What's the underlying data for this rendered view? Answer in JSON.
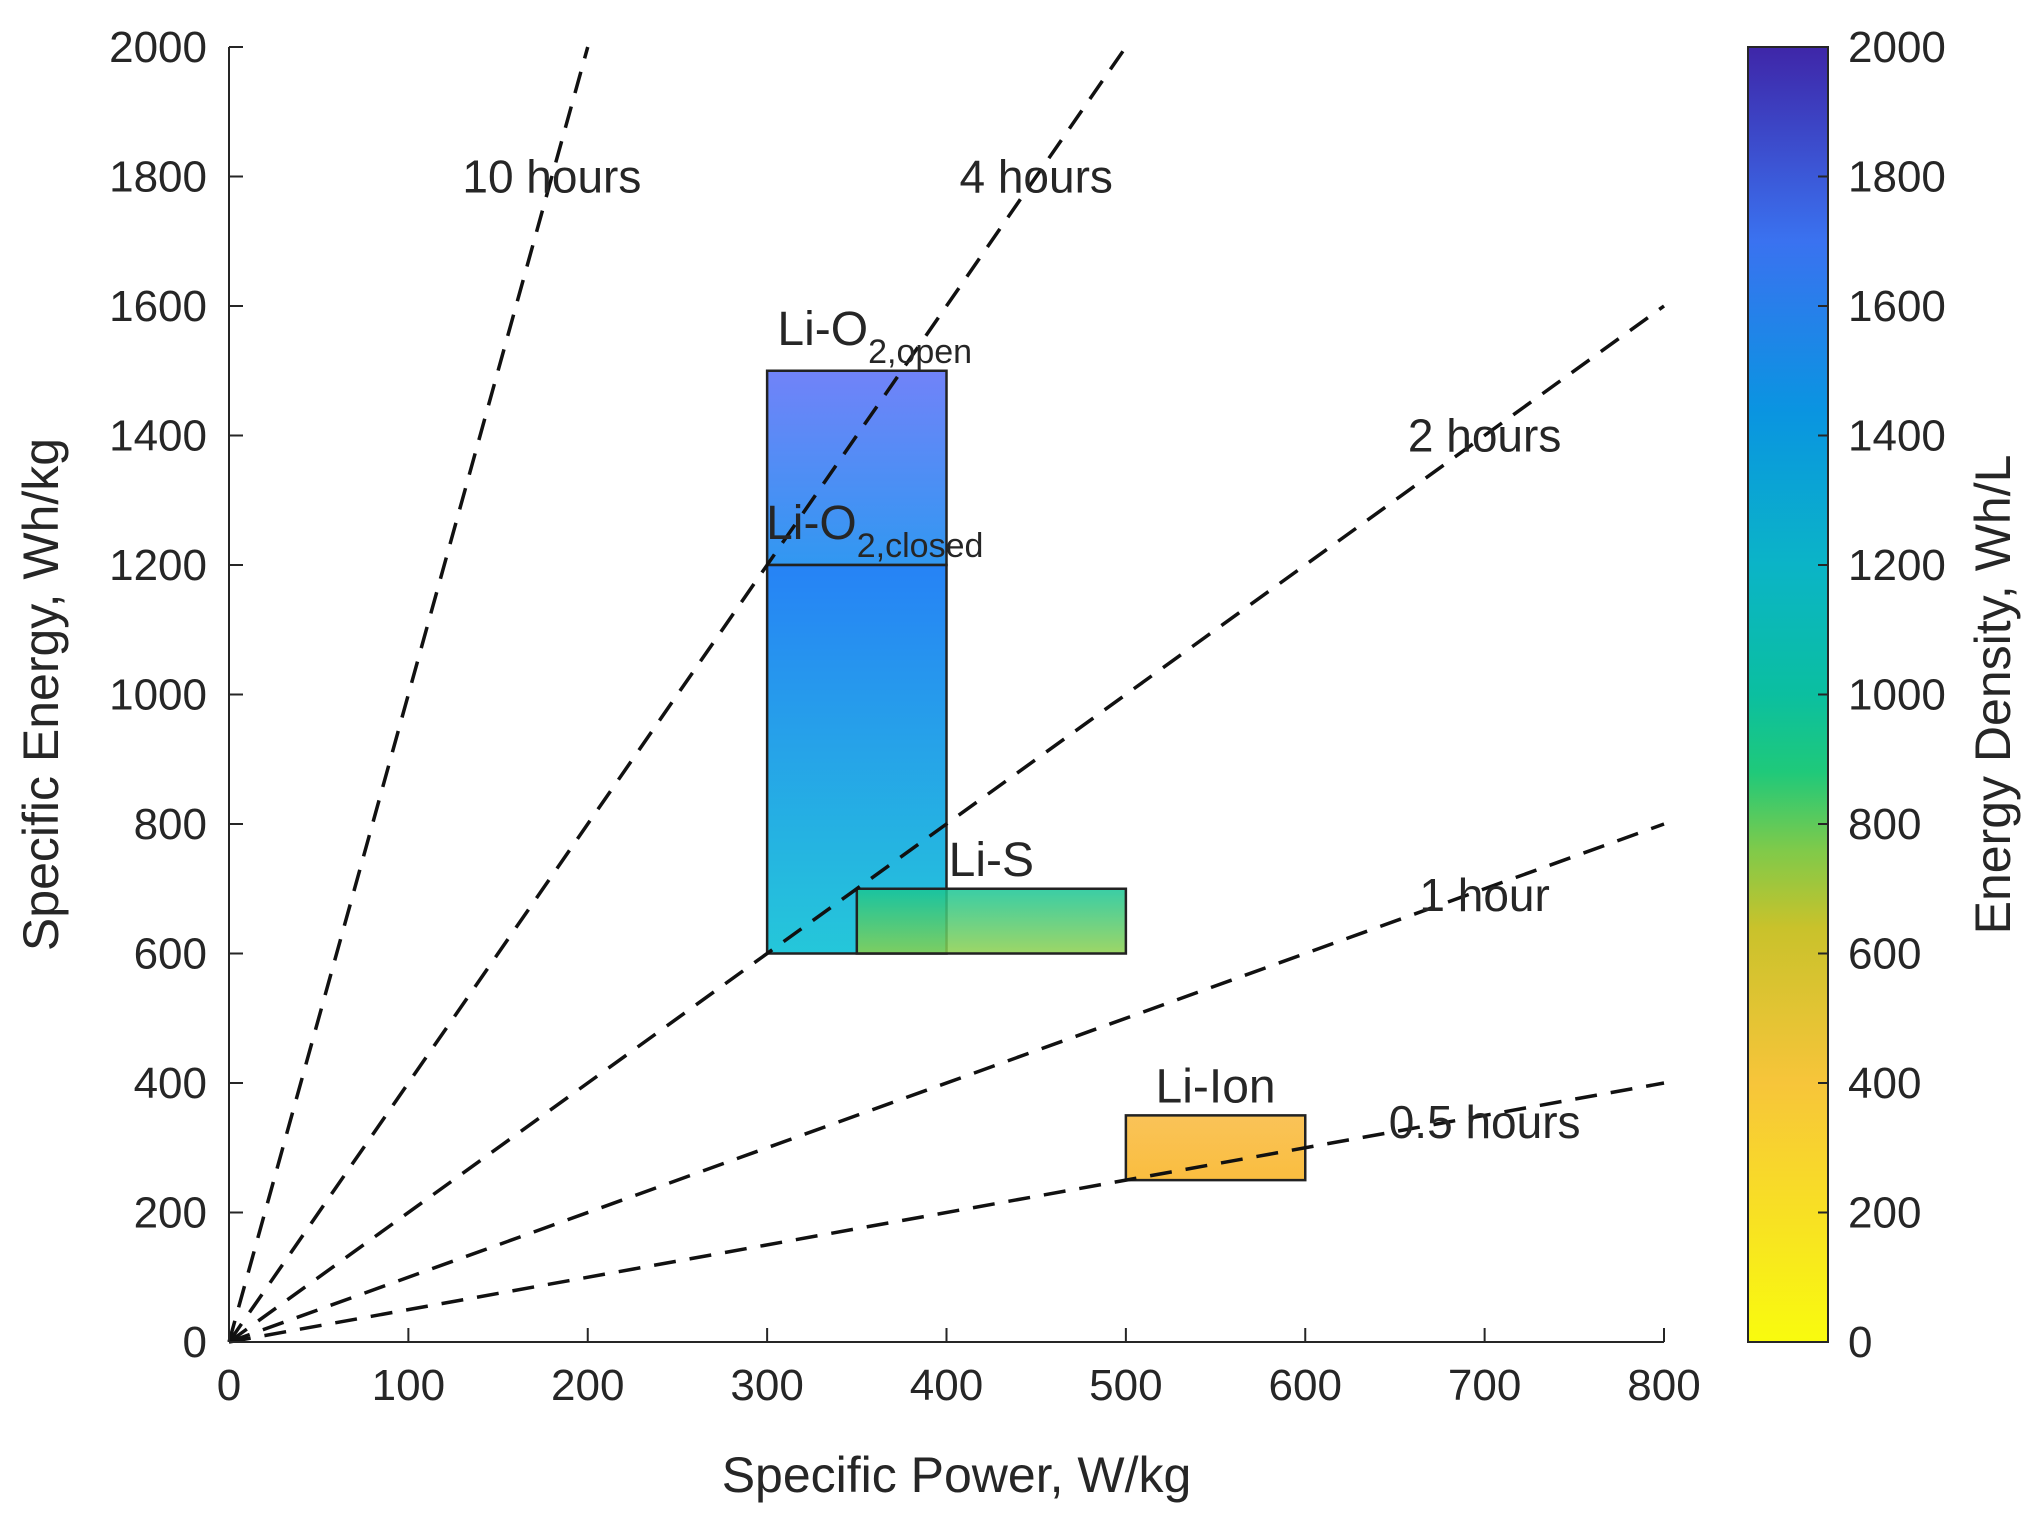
{
  "chart_data": {
    "type": "range-boxes",
    "xlabel": "Specific Power, W/kg",
    "ylabel": "Specific Energy, Wh/kg",
    "xlim": [
      0,
      800
    ],
    "ylim": [
      0,
      2000
    ],
    "xticks": [
      "0",
      "100",
      "200",
      "300",
      "400",
      "500",
      "600",
      "700",
      "800"
    ],
    "yticks": [
      "0",
      "200",
      "400",
      "600",
      "800",
      "1000",
      "1200",
      "1400",
      "1600",
      "1800",
      "2000"
    ],
    "colorbar": {
      "label": "Energy Density, Wh/L",
      "range": [
        0,
        2000
      ],
      "ticks": [
        "0",
        "200",
        "400",
        "600",
        "800",
        "1000",
        "1200",
        "1400",
        "1600",
        "1800",
        "2000"
      ]
    },
    "time_lines": [
      {
        "label": "10 hours",
        "hours": 10,
        "label_at": [
          180,
          1800
        ]
      },
      {
        "label": "4 hours",
        "hours": 4,
        "label_at": [
          450,
          1800
        ]
      },
      {
        "label": "2 hours",
        "hours": 2,
        "label_at": [
          700,
          1400
        ]
      },
      {
        "label": "1 hour",
        "hours": 1,
        "label_at": [
          700,
          690
        ]
      },
      {
        "label": "0.5 hours",
        "hours": 0.5,
        "label_at": [
          700,
          340
        ]
      }
    ],
    "technologies": [
      {
        "name": "Li-O",
        "sub": "2,open",
        "power": [
          300,
          400
        ],
        "energy": [
          1200,
          1500
        ],
        "density": [
          1300,
          1800
        ],
        "label_at": [
          360,
          1540
        ]
      },
      {
        "name": "Li-O",
        "sub": "2,closed",
        "power": [
          300,
          400
        ],
        "energy": [
          600,
          1200
        ],
        "density": [
          1100,
          1500
        ],
        "label_at": [
          360,
          1240
        ]
      },
      {
        "name": "Li-S",
        "sub": "",
        "power": [
          350,
          500
        ],
        "energy": [
          600,
          700
        ],
        "density": [
          700,
          1050
        ],
        "label_at": [
          425,
          720
        ]
      },
      {
        "name": "Li-Ion",
        "sub": "",
        "power": [
          500,
          600
        ],
        "energy": [
          250,
          350
        ],
        "density": [
          400,
          450
        ],
        "label_at": [
          550,
          370
        ]
      }
    ]
  }
}
